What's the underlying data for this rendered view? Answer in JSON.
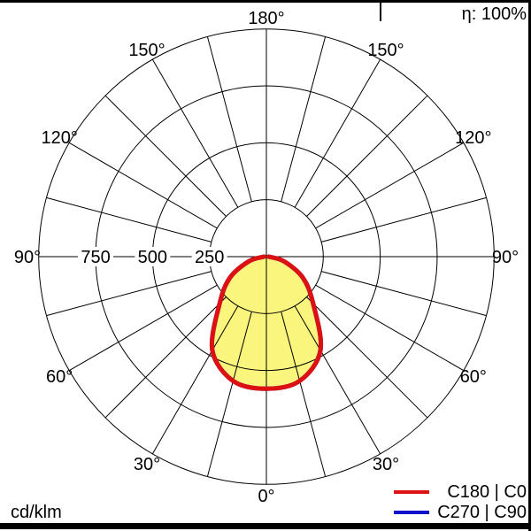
{
  "header": {
    "efficiency_label": "η: 100%"
  },
  "footer": {
    "unit_label": "cd/klm"
  },
  "legend": [
    {
      "label": "C180 | C0",
      "color": "#dd1111"
    },
    {
      "label": "C270 | C90",
      "color": "#1111cc"
    }
  ],
  "chart_data": {
    "type": "polar_intensity",
    "unit": "cd/klm",
    "efficiency_percent": 100,
    "grid": {
      "angle_step_deg": 15,
      "angle_label_step_deg": 30,
      "radial_ticks": [
        250,
        500,
        750
      ],
      "radial_max": 1000
    },
    "angle_labels": {
      "bottom": "0°",
      "top": "180°",
      "sides": [
        "30°",
        "60°",
        "90°",
        "120°",
        "150°"
      ]
    },
    "colors": {
      "curve_c0": "#dd1111",
      "curve_c90": "#1111cc",
      "fill": "#faf57d",
      "grid": "#000000"
    },
    "series": [
      {
        "name": "C270 | C90",
        "color": "#1111cc",
        "fill": "none",
        "gamma_deg": [
          -90,
          -75,
          -60,
          -45,
          -30,
          -15,
          0,
          15,
          30,
          45,
          60,
          75,
          90
        ],
        "values": [
          10,
          80,
          185,
          290,
          475,
          565,
          580,
          565,
          475,
          290,
          185,
          80,
          10
        ]
      },
      {
        "name": "C180 | C0",
        "color": "#dd1111",
        "fill": "#faf57d",
        "gamma_deg": [
          -90,
          -75,
          -60,
          -45,
          -30,
          -15,
          0,
          15,
          30,
          45,
          60,
          75,
          90
        ],
        "values": [
          10,
          80,
          185,
          290,
          475,
          565,
          580,
          565,
          475,
          290,
          185,
          80,
          10
        ]
      }
    ]
  }
}
